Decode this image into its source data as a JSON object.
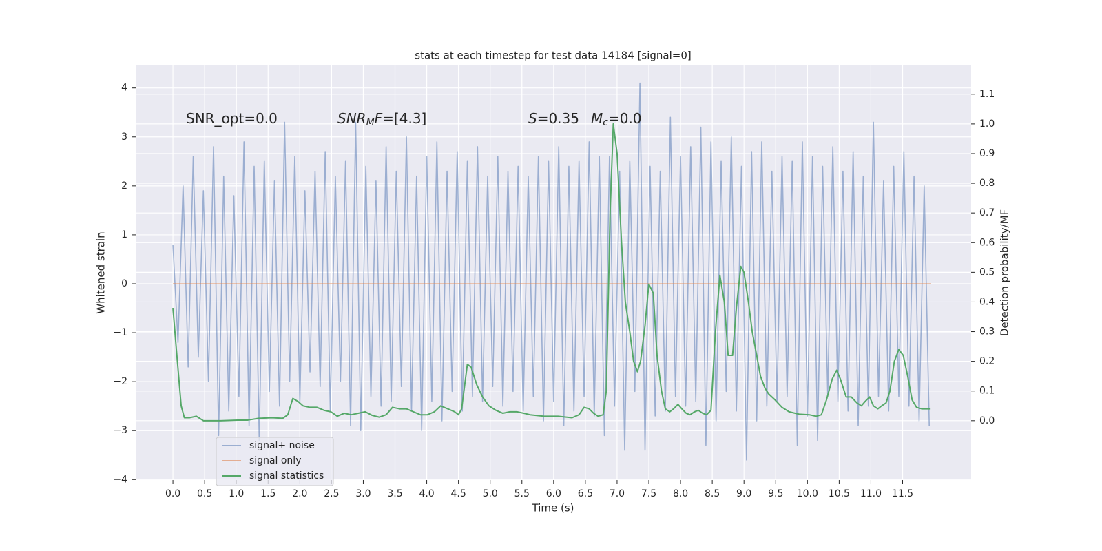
{
  "chart_data": {
    "type": "line",
    "title": "stats at each timestep for test data 14184 [signal=0]",
    "xlabel": "Time (s)",
    "ylabel": "Whitened strain",
    "y2label": "Detection probability/MF",
    "xlim": [
      -0.587,
      12.58
    ],
    "ylim": [
      -4.01,
      4.46
    ],
    "y2lim": [
      -0.2,
      1.197
    ],
    "grid": true,
    "legend": "lower left",
    "xticks": [
      {
        "value": 0,
        "label": "0.0"
      },
      0.5,
      {
        "value": 1,
        "label": "1.0"
      },
      1.5,
      {
        "value": 2,
        "label": "2.0"
      },
      2.5,
      {
        "value": 3,
        "label": "3.0"
      },
      3.5,
      {
        "value": 4,
        "label": "4.0"
      },
      4.5,
      {
        "value": 5,
        "label": "5.0"
      },
      5.5,
      {
        "value": 6,
        "label": "6.0"
      },
      6.5,
      {
        "value": 7,
        "label": "7.0"
      },
      7.5,
      {
        "value": 8,
        "label": "8.0"
      },
      8.5,
      {
        "value": 9,
        "label": "9.0"
      },
      9.5,
      {
        "value": 10,
        "label": "10.0"
      },
      10.5,
      {
        "value": 11,
        "label": "11.0"
      },
      11.5
    ],
    "yticks": [
      {
        "value": -4,
        "label": "−4"
      },
      {
        "value": -3,
        "label": "−3"
      },
      {
        "value": -2,
        "label": "−2"
      },
      {
        "value": -1,
        "label": "−1"
      },
      0,
      1,
      2,
      3,
      4
    ],
    "y2ticks": [
      {
        "value": 0,
        "label": "0.0"
      },
      0.1,
      0.2,
      0.3,
      0.4,
      0.5,
      0.6,
      0.7,
      0.8,
      0.9,
      {
        "value": 1,
        "label": "1.0"
      },
      1.1
    ],
    "annotations": [
      {
        "parts": [
          {
            "text": "SNR_opt=0.0",
            "style": "normal"
          }
        ]
      },
      {
        "parts": [
          {
            "text": "SNR",
            "style": "italic"
          },
          {
            "text": "M",
            "style": "italic-sub"
          },
          {
            "text": "F",
            "style": "italic"
          },
          {
            "text": "=[4.3]",
            "style": "normal"
          }
        ]
      },
      {
        "parts": [
          {
            "text": "S",
            "style": "italic"
          },
          {
            "text": "=0.35",
            "style": "normal"
          }
        ]
      },
      {
        "parts": [
          {
            "text": "M",
            "style": "italic"
          },
          {
            "text": "c",
            "style": "italic-sub"
          },
          {
            "text": "=0.0",
            "style": "normal"
          }
        ]
      }
    ],
    "series": [
      {
        "name": "signal+ noise",
        "color": "#4c72b0",
        "alpha": 0.5,
        "axis": "y",
        "x": [
          0,
          0.08,
          0.16,
          0.24,
          0.32,
          0.4,
          0.48,
          0.56,
          0.64,
          0.72,
          0.8,
          0.88,
          0.96,
          1.04,
          1.12,
          1.2,
          1.28,
          1.36,
          1.44,
          1.52,
          1.6,
          1.68,
          1.76,
          1.84,
          1.92,
          2,
          2.08,
          2.16,
          2.24,
          2.32,
          2.4,
          2.48,
          2.56,
          2.64,
          2.72,
          2.8,
          2.88,
          2.96,
          3.04,
          3.12,
          3.2,
          3.28,
          3.36,
          3.44,
          3.52,
          3.6,
          3.68,
          3.76,
          3.84,
          3.92,
          4,
          4.08,
          4.16,
          4.24,
          4.32,
          4.4,
          4.48,
          4.56,
          4.64,
          4.72,
          4.8,
          4.88,
          4.96,
          5.04,
          5.12,
          5.2,
          5.28,
          5.36,
          5.44,
          5.52,
          5.6,
          5.68,
          5.76,
          5.84,
          5.92,
          6,
          6.08,
          6.16,
          6.24,
          6.32,
          6.4,
          6.48,
          6.56,
          6.64,
          6.72,
          6.8,
          6.88,
          6.96,
          7.04,
          7.12,
          7.2,
          7.28,
          7.36,
          7.44,
          7.52,
          7.6,
          7.68,
          7.76,
          7.84,
          7.92,
          8,
          8.08,
          8.16,
          8.24,
          8.32,
          8.4,
          8.48,
          8.56,
          8.64,
          8.72,
          8.8,
          8.88,
          8.96,
          9.04,
          9.12,
          9.2,
          9.28,
          9.36,
          9.44,
          9.52,
          9.6,
          9.68,
          9.76,
          9.84,
          9.92,
          10,
          10.08,
          10.16,
          10.24,
          10.32,
          10.4,
          10.48,
          10.56,
          10.64,
          10.72,
          10.8,
          10.88,
          10.96,
          11.04,
          11.12,
          11.2,
          11.28,
          11.36,
          11.44,
          11.52,
          11.6,
          11.68,
          11.76,
          11.84,
          11.92
        ],
        "values": [
          0.8,
          -1.2,
          2.0,
          -1.7,
          2.6,
          -1.5,
          1.9,
          -2.0,
          2.8,
          -3.1,
          2.2,
          -2.6,
          1.8,
          -2.3,
          2.9,
          -2.9,
          2.4,
          -3.2,
          2.5,
          -2.2,
          2.1,
          -2.5,
          3.3,
          -2.0,
          2.6,
          -2.4,
          1.9,
          -1.8,
          2.3,
          -2.1,
          2.7,
          -2.6,
          2.2,
          -2.0,
          2.5,
          -2.9,
          3.3,
          -3.0,
          2.4,
          -2.3,
          2.1,
          -2.5,
          2.8,
          -2.4,
          2.3,
          -2.1,
          3.0,
          -2.6,
          2.2,
          -3.0,
          2.6,
          -2.4,
          2.9,
          -2.8,
          2.3,
          -2.2,
          2.7,
          -2.6,
          2.5,
          -2.3,
          2.8,
          -2.4,
          2.2,
          -2.1,
          2.6,
          -2.5,
          2.3,
          -2.2,
          2.4,
          -2.6,
          2.2,
          -2.3,
          2.6,
          -2.8,
          2.5,
          -2.4,
          2.8,
          -2.9,
          2.4,
          -2.6,
          2.5,
          -2.3,
          2.9,
          -2.7,
          2.6,
          -3.1,
          2.6,
          -2.5,
          2.3,
          -3.4,
          2.5,
          -2.2,
          4.1,
          -3.4,
          2.4,
          -2.7,
          2.3,
          -2.6,
          3.4,
          -2.3,
          2.6,
          -2.5,
          2.8,
          -2.4,
          3.2,
          -3.3,
          2.9,
          -2.8,
          2.5,
          -2.2,
          3.0,
          -2.6,
          2.4,
          -3.6,
          2.7,
          -2.8,
          2.9,
          -2.5,
          2.3,
          -2.4,
          2.6,
          -2.3,
          2.5,
          -3.3,
          2.9,
          -2.7,
          2.6,
          -3.2,
          2.4,
          -2.3,
          2.8,
          -2.4,
          2.3,
          -2.6,
          2.7,
          -2.9,
          2.2,
          -2.5,
          3.3,
          -2.3,
          2.1,
          -2.6,
          2.4,
          -2.3,
          2.7,
          -2.5,
          2.2,
          -2.8,
          2.0,
          -2.9
        ]
      },
      {
        "name": "signal only",
        "color": "#dd8452",
        "alpha": 0.6,
        "axis": "y",
        "x": [
          0,
          11.95
        ],
        "values": [
          0,
          0
        ]
      },
      {
        "name": "signal statistics",
        "color": "#55a868",
        "alpha": 1,
        "axis": "y2",
        "x": [
          0,
          0.05,
          0.13,
          0.18,
          0.26,
          0.37,
          0.48,
          0.75,
          1.02,
          1.18,
          1.35,
          1.56,
          1.73,
          1.81,
          1.89,
          1.97,
          2.05,
          2.16,
          2.27,
          2.38,
          2.49,
          2.59,
          2.7,
          2.81,
          2.92,
          3.03,
          3.14,
          3.25,
          3.36,
          3.46,
          3.57,
          3.68,
          3.79,
          3.9,
          4.01,
          4.12,
          4.22,
          4.33,
          4.44,
          4.5,
          4.55,
          4.64,
          4.7,
          4.79,
          4.88,
          4.98,
          5.09,
          5.2,
          5.31,
          5.42,
          5.53,
          5.63,
          5.85,
          6.07,
          6.29,
          6.4,
          6.48,
          6.56,
          6.63,
          6.7,
          6.78,
          6.83,
          6.89,
          6.94,
          7,
          7.07,
          7.13,
          7.2,
          7.26,
          7.32,
          7.37,
          7.44,
          7.5,
          7.57,
          7.63,
          7.7,
          7.76,
          7.83,
          7.89,
          7.96,
          8.02,
          8.09,
          8.15,
          8.22,
          8.28,
          8.35,
          8.41,
          8.48,
          8.55,
          8.62,
          8.69,
          8.75,
          8.82,
          8.88,
          8.95,
          9,
          9.07,
          9.13,
          9.2,
          9.26,
          9.33,
          9.39,
          9.49,
          9.6,
          9.71,
          9.87,
          10.03,
          10.14,
          10.22,
          10.3,
          10.39,
          10.46,
          10.52,
          10.61,
          10.69,
          10.78,
          10.85,
          10.91,
          10.98,
          11.04,
          11.11,
          11.17,
          11.24,
          11.3,
          11.37,
          11.44,
          11.51,
          11.58,
          11.65,
          11.72,
          11.8,
          11.93
        ],
        "values": [
          0.38,
          0.25,
          0.05,
          0.01,
          0.01,
          0.015,
          0.0,
          0.0,
          0.002,
          0.002,
          0.008,
          0.01,
          0.008,
          0.02,
          0.075,
          0.065,
          0.05,
          0.045,
          0.045,
          0.035,
          0.03,
          0.015,
          0.025,
          0.02,
          0.025,
          0.03,
          0.018,
          0.012,
          0.02,
          0.045,
          0.04,
          0.04,
          0.03,
          0.02,
          0.02,
          0.03,
          0.05,
          0.04,
          0.03,
          0.02,
          0.04,
          0.19,
          0.18,
          0.12,
          0.08,
          0.05,
          0.035,
          0.025,
          0.03,
          0.03,
          0.025,
          0.02,
          0.015,
          0.015,
          0.01,
          0.02,
          0.045,
          0.04,
          0.025,
          0.015,
          0.02,
          0.1,
          0.7,
          1.0,
          0.9,
          0.6,
          0.4,
          0.3,
          0.2,
          0.165,
          0.2,
          0.32,
          0.46,
          0.43,
          0.22,
          0.1,
          0.04,
          0.03,
          0.04,
          0.055,
          0.04,
          0.025,
          0.02,
          0.03,
          0.035,
          0.025,
          0.02,
          0.035,
          0.3,
          0.49,
          0.4,
          0.22,
          0.22,
          0.38,
          0.52,
          0.5,
          0.4,
          0.3,
          0.22,
          0.15,
          0.11,
          0.09,
          0.07,
          0.045,
          0.03,
          0.022,
          0.02,
          0.015,
          0.02,
          0.07,
          0.14,
          0.17,
          0.14,
          0.08,
          0.08,
          0.06,
          0.05,
          0.065,
          0.08,
          0.05,
          0.04,
          0.05,
          0.06,
          0.1,
          0.2,
          0.24,
          0.22,
          0.15,
          0.07,
          0.045,
          0.04,
          0.04
        ]
      }
    ]
  }
}
